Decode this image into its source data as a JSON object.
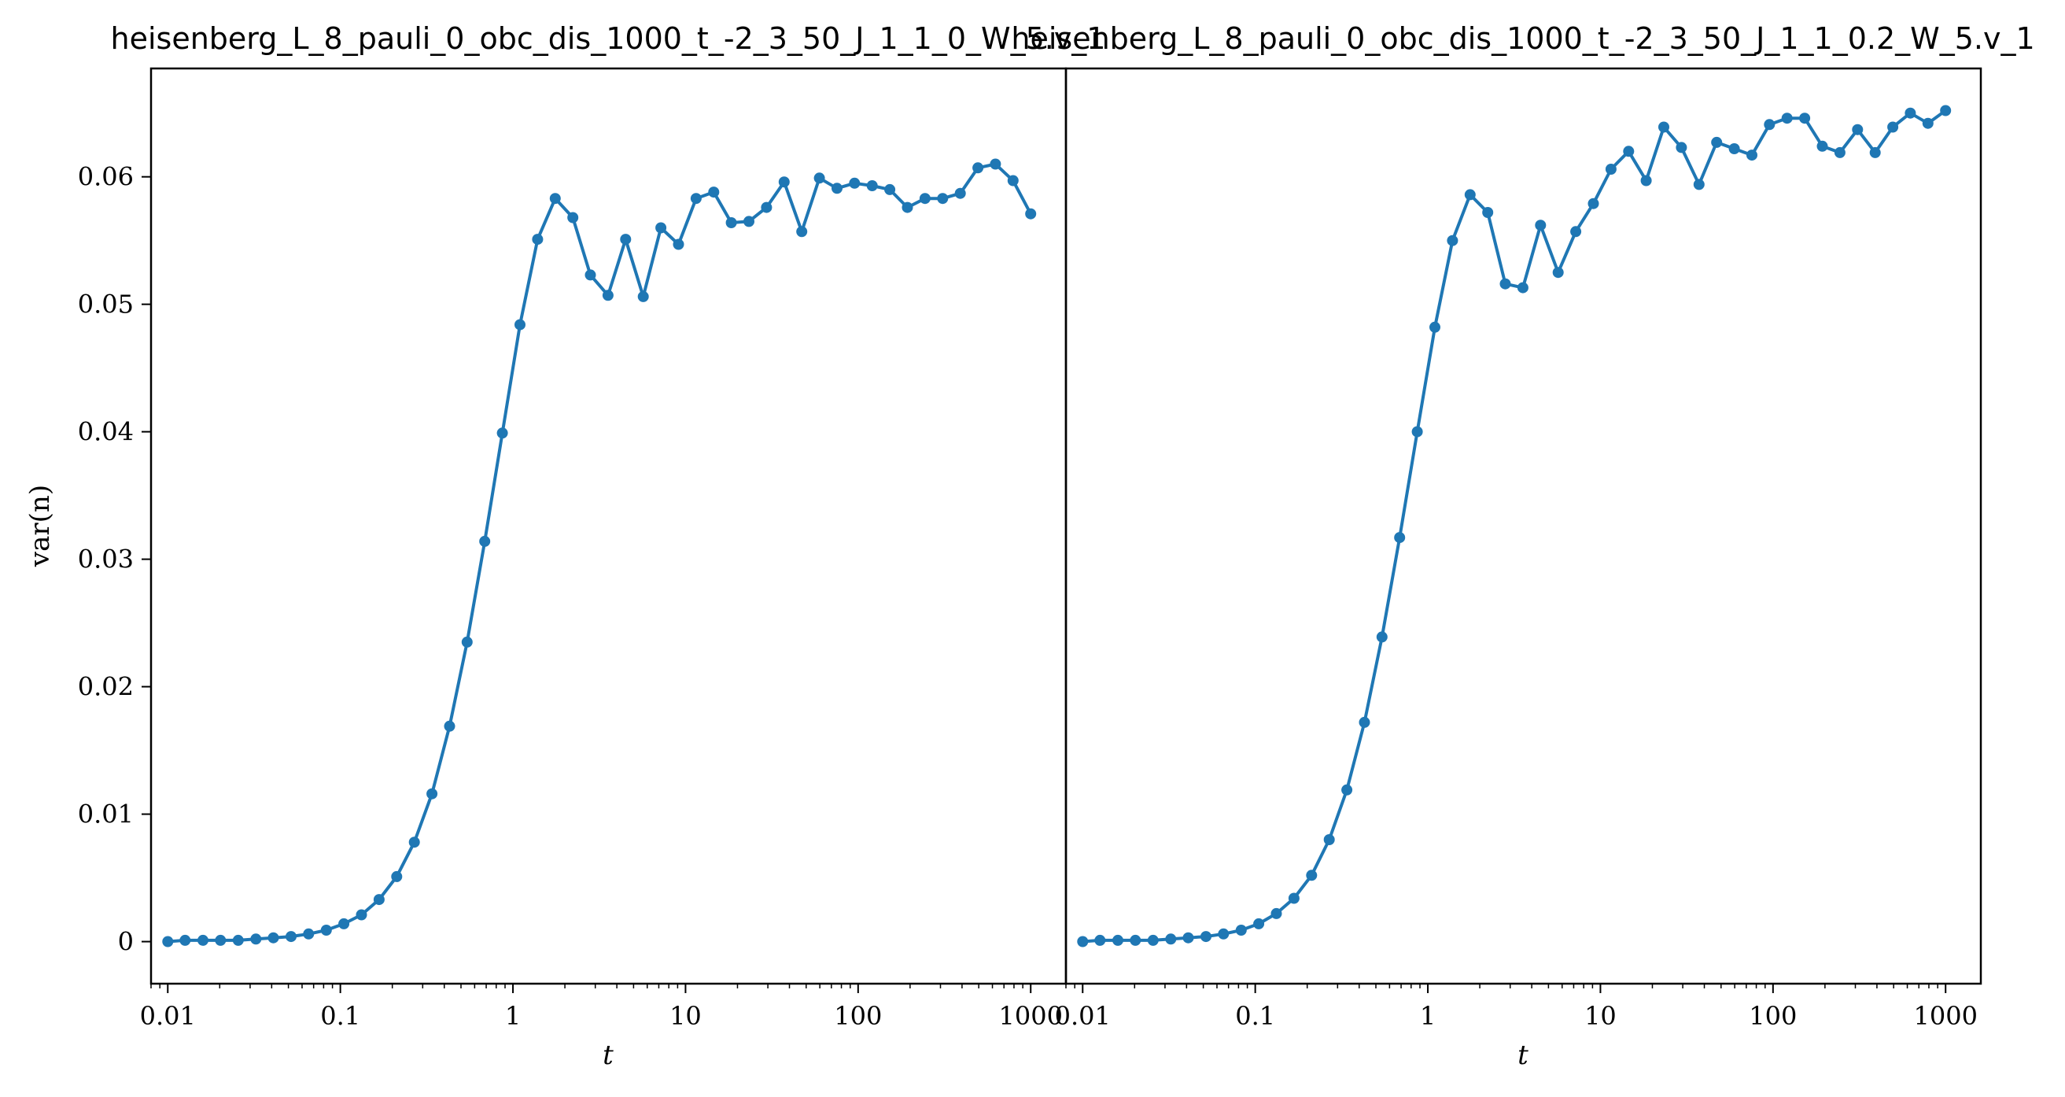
{
  "chart_data": [
    {
      "type": "line",
      "title": "heisenberg_L_8_pauli_0_obc_dis_1000_t_-2_3_50_J_1_1_0_W_5.v_1",
      "xlabel": "t",
      "ylabel": "var(n)",
      "xscale": "log",
      "xlim": [
        0.008,
        1600
      ],
      "ylim": [
        -0.0033,
        0.0685
      ],
      "xticks": [
        0.01,
        0.1,
        1,
        10,
        100,
        1000
      ],
      "xtick_labels": [
        "0.01",
        "0.1",
        "1",
        "10",
        "100",
        "1000"
      ],
      "yticks": [
        0,
        0.01,
        0.02,
        0.03,
        0.04,
        0.05,
        0.06
      ],
      "ytick_labels": [
        "0",
        "0.01",
        "0.02",
        "0.03",
        "0.04",
        "0.05",
        "0.06"
      ],
      "color": "#1f77b4",
      "grid": false,
      "series": [
        {
          "x": [
            0.01,
            0.0126,
            0.016,
            0.0202,
            0.0256,
            0.0324,
            0.0409,
            0.0518,
            0.0655,
            0.0829,
            0.1048,
            0.1326,
            0.1677,
            0.2121,
            0.2683,
            0.3393,
            0.4292,
            0.5429,
            0.6866,
            0.8685,
            1.0985,
            1.3895,
            1.7575,
            2.223,
            2.8118,
            3.5565,
            4.4984,
            5.6899,
            7.1969,
            9.103,
            11.514,
            14.563,
            18.421,
            23.3,
            29.471,
            37.276,
            47.149,
            59.636,
            75.431,
            95.41,
            120.68,
            152.64,
            193.07,
            244.21,
            308.89,
            390.7,
            494.17,
            625.06,
            790.6,
            1000
          ],
          "y": [
            0.0,
            0.0001,
            0.0001,
            0.0001,
            0.0001,
            0.0002,
            0.0003,
            0.0004,
            0.0006,
            0.0009,
            0.0014,
            0.0021,
            0.0033,
            0.0051,
            0.0078,
            0.0116,
            0.0169,
            0.0235,
            0.0314,
            0.0399,
            0.0484,
            0.0551,
            0.0583,
            0.0568,
            0.0523,
            0.0507,
            0.0551,
            0.0506,
            0.056,
            0.0547,
            0.0583,
            0.0588,
            0.0564,
            0.0565,
            0.0576,
            0.0596,
            0.0557,
            0.0599,
            0.0591,
            0.0595,
            0.0593,
            0.059,
            0.0576,
            0.0583,
            0.0583,
            0.0587,
            0.0607,
            0.061,
            0.0597,
            0.0571
          ]
        }
      ]
    },
    {
      "type": "line",
      "title": "heisenberg_L_8_pauli_0_obc_dis_1000_t_-2_3_50_J_1_1_0.2_W_5.v_1",
      "xlabel": "t",
      "ylabel": "",
      "xscale": "log",
      "xlim": [
        0.008,
        1600
      ],
      "ylim": [
        -0.0033,
        0.0685
      ],
      "xticks": [
        0.01,
        0.1,
        1,
        10,
        100,
        1000
      ],
      "xtick_labels": [
        "0.01",
        "0.1",
        "1",
        "10",
        "100",
        "1000"
      ],
      "yticks": [],
      "ytick_labels": [],
      "color": "#1f77b4",
      "grid": false,
      "series": [
        {
          "x": [
            0.01,
            0.0126,
            0.016,
            0.0202,
            0.0256,
            0.0324,
            0.0409,
            0.0518,
            0.0655,
            0.0829,
            0.1048,
            0.1326,
            0.1677,
            0.2121,
            0.2683,
            0.3393,
            0.4292,
            0.5429,
            0.6866,
            0.8685,
            1.0985,
            1.3895,
            1.7575,
            2.223,
            2.8118,
            3.5565,
            4.4984,
            5.6899,
            7.1969,
            9.103,
            11.514,
            14.563,
            18.421,
            23.3,
            29.471,
            37.276,
            47.149,
            59.636,
            75.431,
            95.41,
            120.68,
            152.64,
            193.07,
            244.21,
            308.89,
            390.7,
            494.17,
            625.06,
            790.6,
            1000
          ],
          "y": [
            0.0,
            0.0001,
            0.0001,
            0.0001,
            0.0001,
            0.0002,
            0.0003,
            0.0004,
            0.0006,
            0.0009,
            0.0014,
            0.0022,
            0.0034,
            0.0052,
            0.008,
            0.0119,
            0.0172,
            0.0239,
            0.0317,
            0.04,
            0.0482,
            0.055,
            0.0586,
            0.0572,
            0.0516,
            0.0513,
            0.0562,
            0.0525,
            0.0557,
            0.0579,
            0.0606,
            0.062,
            0.0597,
            0.0639,
            0.0623,
            0.0594,
            0.0627,
            0.0622,
            0.0617,
            0.0641,
            0.0646,
            0.0646,
            0.0624,
            0.0619,
            0.0637,
            0.0619,
            0.0639,
            0.065,
            0.0642,
            0.0652
          ]
        }
      ]
    }
  ]
}
